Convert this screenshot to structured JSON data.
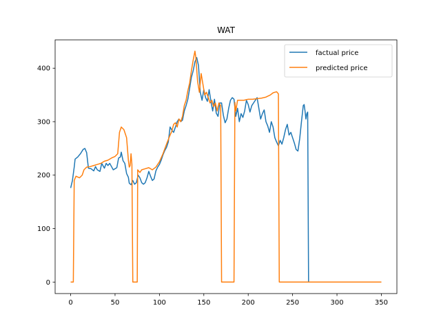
{
  "chart_data": {
    "type": "line",
    "title": "WAT",
    "xlabel": "",
    "ylabel": "",
    "xlim": [
      -17.5,
      367.5
    ],
    "ylim": [
      -21.5,
      453
    ],
    "xticks": [
      0,
      50,
      100,
      150,
      200,
      250,
      300,
      350
    ],
    "yticks": [
      0,
      100,
      200,
      300,
      400
    ],
    "grid": false,
    "legend": "top-right",
    "series": [
      {
        "name": "factual price",
        "color": "#1f77b4",
        "points": [
          [
            0,
            176
          ],
          [
            2,
            190
          ],
          [
            4,
            215
          ],
          [
            5,
            230
          ],
          [
            8,
            234
          ],
          [
            11,
            240
          ],
          [
            14,
            248
          ],
          [
            16,
            250
          ],
          [
            18,
            242
          ],
          [
            20,
            213
          ],
          [
            23,
            212
          ],
          [
            26,
            208
          ],
          [
            28,
            216
          ],
          [
            30,
            210
          ],
          [
            33,
            207
          ],
          [
            35,
            222
          ],
          [
            38,
            213
          ],
          [
            40,
            222
          ],
          [
            42,
            218
          ],
          [
            44,
            222
          ],
          [
            46,
            216
          ],
          [
            48,
            210
          ],
          [
            50,
            212
          ],
          [
            52,
            214
          ],
          [
            54,
            232
          ],
          [
            56,
            234
          ],
          [
            57,
            243
          ],
          [
            59,
            227
          ],
          [
            61,
            222
          ],
          [
            63,
            203
          ],
          [
            65,
            196
          ],
          [
            66,
            185
          ],
          [
            68,
            182
          ],
          [
            70,
            190
          ],
          [
            72,
            183
          ],
          [
            74,
            186
          ],
          [
            76,
            200
          ],
          [
            78,
            195
          ],
          [
            80,
            186
          ],
          [
            82,
            183
          ],
          [
            84,
            186
          ],
          [
            86,
            195
          ],
          [
            88,
            207
          ],
          [
            90,
            198
          ],
          [
            92,
            190
          ],
          [
            94,
            193
          ],
          [
            96,
            208
          ],
          [
            98,
            215
          ],
          [
            100,
            220
          ],
          [
            102,
            228
          ],
          [
            104,
            238
          ],
          [
            106,
            246
          ],
          [
            108,
            252
          ],
          [
            110,
            262
          ],
          [
            112,
            290
          ],
          [
            114,
            284
          ],
          [
            116,
            280
          ],
          [
            118,
            290
          ],
          [
            120,
            300
          ],
          [
            122,
            305
          ],
          [
            124,
            300
          ],
          [
            126,
            303
          ],
          [
            128,
            320
          ],
          [
            130,
            330
          ],
          [
            132,
            342
          ],
          [
            134,
            362
          ],
          [
            136,
            383
          ],
          [
            138,
            395
          ],
          [
            140,
            412
          ],
          [
            142,
            420
          ],
          [
            144,
            405
          ],
          [
            146,
            355
          ],
          [
            148,
            340
          ],
          [
            150,
            360
          ],
          [
            152,
            345
          ],
          [
            154,
            338
          ],
          [
            156,
            360
          ],
          [
            158,
            338
          ],
          [
            160,
            320
          ],
          [
            162,
            342
          ],
          [
            164,
            316
          ],
          [
            166,
            310
          ],
          [
            168,
            335
          ],
          [
            170,
            335
          ],
          [
            172,
            312
          ],
          [
            174,
            298
          ],
          [
            176,
            305
          ],
          [
            178,
            325
          ],
          [
            180,
            340
          ],
          [
            182,
            345
          ],
          [
            184,
            342
          ],
          [
            186,
            310
          ],
          [
            188,
            325
          ],
          [
            190,
            300
          ],
          [
            192,
            315
          ],
          [
            194,
            308
          ],
          [
            196,
            320
          ],
          [
            198,
            340
          ],
          [
            200,
            332
          ],
          [
            202,
            318
          ],
          [
            204,
            330
          ],
          [
            206,
            335
          ],
          [
            208,
            340
          ],
          [
            210,
            345
          ],
          [
            212,
            325
          ],
          [
            214,
            305
          ],
          [
            216,
            315
          ],
          [
            218,
            322
          ],
          [
            220,
            300
          ],
          [
            222,
            292
          ],
          [
            224,
            280
          ],
          [
            226,
            300
          ],
          [
            228,
            290
          ],
          [
            230,
            270
          ],
          [
            232,
            262
          ],
          [
            234,
            255
          ],
          [
            236,
            265
          ],
          [
            238,
            258
          ],
          [
            240,
            270
          ],
          [
            242,
            285
          ],
          [
            244,
            295
          ],
          [
            246,
            275
          ],
          [
            248,
            280
          ],
          [
            250,
            270
          ],
          [
            252,
            260
          ],
          [
            254,
            248
          ],
          [
            256,
            245
          ],
          [
            258,
            268
          ],
          [
            260,
            300
          ],
          [
            262,
            330
          ],
          [
            263,
            332
          ],
          [
            264,
            320
          ],
          [
            265,
            305
          ],
          [
            266,
            315
          ],
          [
            267,
            318
          ],
          [
            268,
            0
          ],
          [
            350,
            0
          ]
        ]
      },
      {
        "name": "predicted price",
        "color": "#ff7f0e",
        "points": [
          [
            0,
            0
          ],
          [
            3,
            0
          ],
          [
            4,
            190
          ],
          [
            6,
            198
          ],
          [
            10,
            195
          ],
          [
            13,
            200
          ],
          [
            15,
            210
          ],
          [
            18,
            215
          ],
          [
            22,
            216
          ],
          [
            26,
            218
          ],
          [
            30,
            220
          ],
          [
            34,
            222
          ],
          [
            38,
            226
          ],
          [
            42,
            228
          ],
          [
            46,
            232
          ],
          [
            50,
            235
          ],
          [
            53,
            240
          ],
          [
            55,
            280
          ],
          [
            57,
            290
          ],
          [
            60,
            285
          ],
          [
            63,
            270
          ],
          [
            65,
            228
          ],
          [
            66,
            215
          ],
          [
            67,
            218
          ],
          [
            68,
            240
          ],
          [
            69,
            220
          ],
          [
            70,
            0
          ],
          [
            75,
            0
          ],
          [
            75.5,
            210
          ],
          [
            78,
            205
          ],
          [
            80,
            210
          ],
          [
            84,
            212
          ],
          [
            88,
            214
          ],
          [
            92,
            210
          ],
          [
            96,
            215
          ],
          [
            100,
            225
          ],
          [
            104,
            240
          ],
          [
            108,
            258
          ],
          [
            112,
            275
          ],
          [
            114,
            282
          ],
          [
            116,
            295
          ],
          [
            118,
            298
          ],
          [
            120,
            290
          ],
          [
            122,
            305
          ],
          [
            124,
            300
          ],
          [
            126,
            310
          ],
          [
            128,
            330
          ],
          [
            130,
            340
          ],
          [
            132,
            358
          ],
          [
            134,
            372
          ],
          [
            136,
            395
          ],
          [
            138,
            415
          ],
          [
            140,
            432
          ],
          [
            141,
            420
          ],
          [
            143,
            375
          ],
          [
            145,
            355
          ],
          [
            147,
            390
          ],
          [
            149,
            370
          ],
          [
            151,
            350
          ],
          [
            153,
            355
          ],
          [
            155,
            345
          ],
          [
            157,
            335
          ],
          [
            159,
            340
          ],
          [
            161,
            328
          ],
          [
            163,
            335
          ],
          [
            165,
            320
          ],
          [
            167,
            335
          ],
          [
            169,
            330
          ],
          [
            170,
            0
          ],
          [
            184,
            0
          ],
          [
            185,
            336
          ],
          [
            186,
            320
          ],
          [
            188,
            340
          ],
          [
            195,
            340
          ],
          [
            200,
            342
          ],
          [
            205,
            342
          ],
          [
            210,
            343
          ],
          [
            215,
            344
          ],
          [
            220,
            346
          ],
          [
            225,
            350
          ],
          [
            228,
            354
          ],
          [
            232,
            356
          ],
          [
            234,
            352
          ],
          [
            235,
            0
          ],
          [
            350,
            0
          ]
        ]
      }
    ]
  }
}
